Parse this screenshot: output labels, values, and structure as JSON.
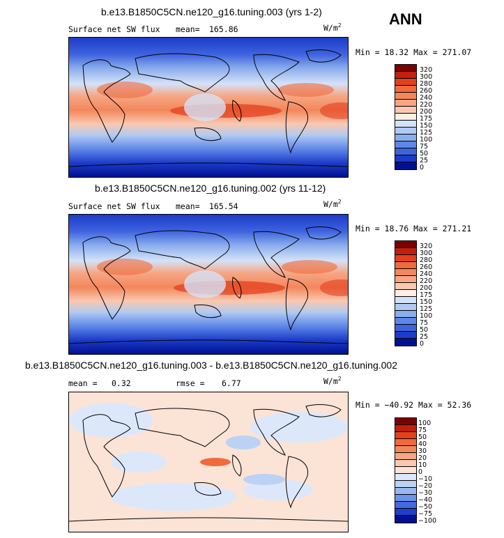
{
  "season": "ANN",
  "panels": [
    {
      "title": "b.e13.B1850C5CN.ne120_g16.tuning.003 (yrs 1-2)",
      "left_label": "Surface net SW flux",
      "stat_label": "mean=",
      "stat_value": "165.86",
      "units": "W/m",
      "units_exp": "2",
      "minmax": "Min =   18.32 Max = 271.07",
      "colorbar_labels": [
        "320",
        "300",
        "280",
        "260",
        "240",
        "220",
        "200",
        "175",
        "150",
        "125",
        "100",
        "75",
        "50",
        "25",
        "0"
      ],
      "colors": [
        "#7d0000",
        "#c2200b",
        "#e4401e",
        "#f06a3c",
        "#f3875c",
        "#f6a684",
        "#fac8b0",
        "#fff0e6",
        "#d4e2f8",
        "#b2caf2",
        "#8aaded",
        "#5f87e8",
        "#3e63df",
        "#1c3cc8",
        "#001092"
      ]
    },
    {
      "title": "b.e13.B1850C5CN.ne120_g16.tuning.002 (yrs 11-12)",
      "left_label": "Surface net SW flux",
      "stat_label": "mean=",
      "stat_value": "165.54",
      "units": "W/m",
      "units_exp": "2",
      "minmax": "Min =   18.76 Max = 271.21",
      "colorbar_labels": [
        "320",
        "300",
        "280",
        "260",
        "240",
        "220",
        "200",
        "175",
        "150",
        "125",
        "100",
        "75",
        "50",
        "25",
        "0"
      ],
      "colors": [
        "#7d0000",
        "#c2200b",
        "#e4401e",
        "#f06a3c",
        "#f3875c",
        "#f6a684",
        "#fac8b0",
        "#fff0e6",
        "#d4e2f8",
        "#b2caf2",
        "#8aaded",
        "#5f87e8",
        "#3e63df",
        "#1c3cc8",
        "#001092"
      ]
    },
    {
      "title": "b.e13.B1850C5CN.ne120_g16.tuning.003 - b.e13.B1850C5CN.ne120_g16.tuning.002",
      "mean_label": "mean =",
      "mean_value": "0.32",
      "rmse_label": "rmse =",
      "rmse_value": "6.77",
      "units": "W/m",
      "units_exp": "2",
      "minmax": "Min = −40.92 Max =  52.36",
      "colorbar_labels": [
        "100",
        "75",
        "50",
        "40",
        "30",
        "20",
        "10",
        "0",
        "−10",
        "−20",
        "−30",
        "−40",
        "−50",
        "−75",
        "−100"
      ],
      "colors": [
        "#7d0000",
        "#c2200b",
        "#e4401e",
        "#f06a3c",
        "#f3875c",
        "#f6a684",
        "#fac8b0",
        "#fbe3d6",
        "#dce8fa",
        "#bcd2f4",
        "#98b8ef",
        "#6c92e9",
        "#4669e0",
        "#1f3ecb",
        "#001092"
      ]
    }
  ]
}
